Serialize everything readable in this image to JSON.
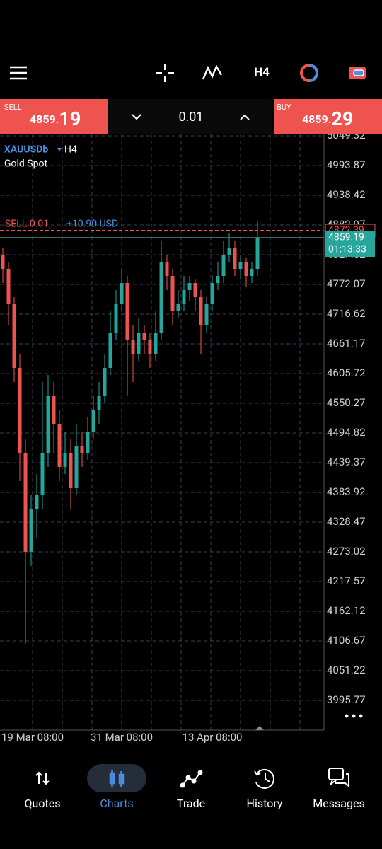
{
  "toolbar": {
    "timeframe": "H4"
  },
  "trade_bar": {
    "sell_label": "SELL",
    "sell_price_main": "4859.",
    "sell_price_big": "19",
    "volume": "0.01",
    "buy_label": "BUY",
    "buy_price_main": "4859.",
    "buy_price_big": "29"
  },
  "chart_data": {
    "type": "candlestick",
    "symbol": "XAUUSDb",
    "timeframe": "H4",
    "description": "Gold Spot",
    "categories": [
      "19 Mar 08:00",
      null,
      null,
      null,
      null,
      null,
      null,
      null,
      null,
      null,
      null,
      null,
      null,
      null,
      null,
      null,
      null,
      null,
      null,
      null,
      null,
      "31 Mar 08:00",
      null,
      null,
      null,
      null,
      null,
      null,
      null,
      null,
      null,
      null,
      null,
      null,
      null,
      null,
      null,
      "13 Apr 08:00",
      null,
      null,
      null,
      null,
      null,
      null,
      null,
      null
    ],
    "open": [
      4827.5,
      4801.1,
      4735.1,
      4616.3,
      4457.9,
      4273.1,
      4352.3,
      4378.7,
      4457.9,
      4563.5,
      4510.7,
      4431.5,
      4457.9,
      4391.9,
      4471.1,
      4457.9,
      4497.5,
      4537.1,
      4563.5,
      4616.3,
      4682.3,
      4735.1,
      4774.7,
      4669.1,
      4642.7,
      4682.3,
      4669.1,
      4642.7,
      4682.3,
      4814.3,
      4787.9,
      4721.9,
      4735.1,
      4761.5,
      4774.7,
      4748.3,
      4695.5,
      4735.1,
      4774.7,
      4787.9,
      4827.5,
      4840.8,
      4801.1,
      4814.3,
      4787.9,
      4801.1
    ],
    "high": [
      4840.8,
      4814.3,
      4748.3,
      4642.7,
      4484.3,
      4378.7,
      4418.3,
      4589.9,
      4603.1,
      4589.9,
      4537.1,
      4497.5,
      4484.3,
      4510.7,
      4497.5,
      4523.9,
      4563.5,
      4589.9,
      4642.7,
      4721.9,
      4761.5,
      4801.1,
      4787.9,
      4695.5,
      4708.7,
      4695.5,
      4682.3,
      4721.9,
      4853.9,
      4827.5,
      4801.1,
      4761.5,
      4787.9,
      4787.9,
      4781.3,
      4761.5,
      4748.3,
      4787.9,
      4814.3,
      4853.9,
      4867.2,
      4853.9,
      4827.5,
      4820.9,
      4814.3,
      4890.9
    ],
    "low": [
      4774.7,
      4695.5,
      4589.9,
      4405.1,
      4101.4,
      4246.7,
      4299.5,
      4352.3,
      4431.5,
      4457.9,
      4405.1,
      4418.3,
      4352.3,
      4378.7,
      4431.5,
      4444.7,
      4484.3,
      4510.7,
      4550.3,
      4603.1,
      4669.1,
      4721.9,
      4563.5,
      4589.9,
      4629.5,
      4642.7,
      4616.3,
      4629.5,
      4669.1,
      4761.5,
      4695.5,
      4708.7,
      4721.9,
      4741.7,
      4721.9,
      4642.7,
      4682.3,
      4721.9,
      4761.5,
      4774.7,
      4814.3,
      4787.9,
      4781.3,
      4768.1,
      4774.7,
      4787.9
    ],
    "close": [
      4801.1,
      4735.1,
      4616.3,
      4457.9,
      4273.1,
      4352.3,
      4378.7,
      4457.9,
      4563.5,
      4510.7,
      4431.5,
      4457.9,
      4391.9,
      4471.1,
      4457.9,
      4497.5,
      4537.1,
      4563.5,
      4616.3,
      4682.3,
      4735.1,
      4774.7,
      4669.1,
      4642.7,
      4682.3,
      4669.1,
      4642.7,
      4682.3,
      4814.3,
      4787.9,
      4721.9,
      4735.1,
      4761.5,
      4774.7,
      4748.3,
      4695.5,
      4735.1,
      4774.7,
      4787.9,
      4827.5,
      4840.8,
      4801.1,
      4814.3,
      4787.9,
      4801.1,
      4859.19
    ],
    "up_color": "#26a69a",
    "down_color": "#ef5350",
    "ylim": [
      3940.32,
      5051.96
    ],
    "yticks": [
      5049.32,
      4993.87,
      4938.42,
      4882.97,
      4827.52,
      4772.07,
      4716.62,
      4661.17,
      4605.72,
      4550.27,
      4494.82,
      4439.37,
      4383.92,
      4328.47,
      4273.02,
      4217.57,
      4162.12,
      4106.67,
      4051.22,
      3995.77
    ],
    "grid": true,
    "current_price": {
      "value": 4859.19,
      "countdown": "01:13:33",
      "color": "#26a69a"
    },
    "position": {
      "label": "SELL 0.01,",
      "profit": "+10.90 USD",
      "price": 4872.39,
      "color": "#ef5350"
    }
  },
  "nav": {
    "items": [
      "Quotes",
      "Charts",
      "Trade",
      "History",
      "Messages"
    ],
    "active": 1
  }
}
